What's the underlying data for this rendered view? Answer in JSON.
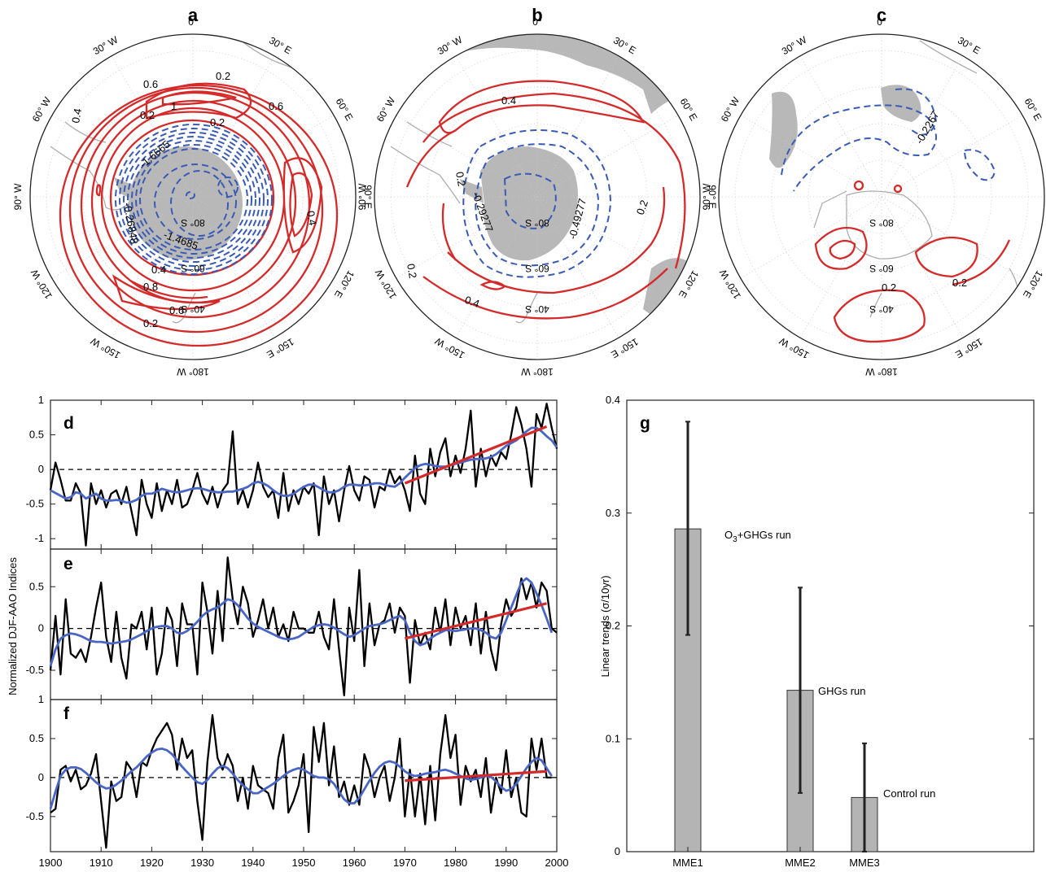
{
  "colors": {
    "positive": "#d42a2a",
    "negative": "#3a5bb5",
    "smooth": "#4a66c4",
    "series": "#000000",
    "trend": "#d42a2a",
    "land": "#b8b8b8",
    "bar": "#b4b4b4",
    "errorbar": "#222222"
  },
  "panel_labels": [
    "a",
    "b",
    "c",
    "d",
    "e",
    "f",
    "g"
  ],
  "maps": {
    "lon_labels": [
      "0°",
      "30° E",
      "60° E",
      "90° E",
      "120° E",
      "150° E",
      "180° W",
      "150° W",
      "120° W",
      "90° W",
      "60° W",
      "30° W"
    ],
    "lat_labels": [
      "40° S",
      "60° S",
      "80° S"
    ],
    "a": {
      "contour_labels": [
        "0.2",
        "0.6",
        "1",
        "0.2",
        "0.6",
        "0.4",
        "-1.6665",
        "-0.26848",
        "-1.4685",
        "0.4",
        "0.8",
        "0.6",
        "0.2",
        "0.4",
        "0.2"
      ]
    },
    "b": {
      "contour_labels": [
        "0.4",
        "0.2",
        "0.2",
        "-0.29277",
        "-0.49277",
        "0.2",
        "0.4"
      ]
    },
    "c": {
      "contour_labels": [
        "-0.2267",
        "0.2",
        "0.2"
      ]
    }
  },
  "chart_data": [
    {
      "type": "line",
      "panel": "d",
      "ylabel": "Normalized DJF-AAO Indices",
      "xlim": [
        1900,
        2000
      ],
      "ylim": [
        -1.15,
        1.0
      ],
      "yticks": [
        -1,
        -0.5,
        0,
        0.5,
        1
      ],
      "series": [
        {
          "values": [
            -0.3,
            0.1,
            -0.15,
            -0.45,
            -0.45,
            -0.2,
            -0.35,
            -1.1,
            -0.2,
            -0.5,
            -0.3,
            -0.55,
            -0.35,
            -0.3,
            -0.5,
            -0.25,
            -0.6,
            -0.95,
            -0.15,
            -0.5,
            -0.7,
            -0.2,
            -0.6,
            -0.3,
            -0.5,
            -0.15,
            -0.55,
            -0.5,
            -0.3,
            -0.05,
            -0.35,
            -0.5,
            -0.25,
            -0.55,
            -0.3,
            -0.2,
            0.55,
            -0.5,
            -0.3,
            -0.55,
            -0.3,
            0.1,
            -0.25,
            -0.4,
            -0.3,
            -0.7,
            -0.05,
            -0.6,
            -0.3,
            -0.5,
            -0.25,
            -0.35,
            -0.2,
            -0.95,
            -0.1,
            -0.5,
            -0.3,
            -0.75,
            -0.3,
            0.05,
            -0.3,
            -0.45,
            -0.1,
            -0.15,
            -0.55,
            -0.25,
            -0.3,
            0.0,
            -0.2,
            -0.1,
            -0.3,
            -0.6,
            0.2,
            -0.35,
            -0.5,
            0.3,
            -0.1,
            0.25,
            0.45,
            -0.1,
            0.2,
            -0.05,
            0.3,
            0.85,
            -0.25,
            0.3,
            -0.1,
            0.2,
            0.05,
            0.25,
            0.15,
            0.5,
            0.9,
            0.65,
            0.3,
            -0.25,
            0.8,
            0.6,
            0.95,
            0.6,
            0.3
          ]
        },
        {
          "values": [
            -0.3,
            -0.34,
            -0.38,
            -0.42,
            -0.4,
            -0.33,
            -0.35,
            -0.42,
            -0.38,
            -0.35,
            -0.42,
            -0.45,
            -0.45,
            -0.44,
            -0.45,
            -0.48,
            -0.47,
            -0.44,
            -0.38,
            -0.35,
            -0.35,
            -0.32,
            -0.28,
            -0.3,
            -0.32,
            -0.33,
            -0.32,
            -0.3,
            -0.28,
            -0.27,
            -0.28,
            -0.3,
            -0.32,
            -0.33,
            -0.33,
            -0.32,
            -0.32,
            -0.3,
            -0.28,
            -0.25,
            -0.2,
            -0.18,
            -0.2,
            -0.24,
            -0.3,
            -0.35,
            -0.38,
            -0.38,
            -0.35,
            -0.3,
            -0.25,
            -0.22,
            -0.22,
            -0.26,
            -0.3,
            -0.33,
            -0.33,
            -0.3,
            -0.25,
            -0.22,
            -0.22,
            -0.23,
            -0.23,
            -0.22,
            -0.2,
            -0.2,
            -0.22,
            -0.24,
            -0.25,
            -0.2,
            -0.12,
            -0.05,
            0.02,
            0.06,
            0.08,
            0.07,
            0.05,
            0.04,
            0.04,
            0.06,
            0.08,
            0.1,
            0.12,
            0.14,
            0.15,
            0.15,
            0.16,
            0.18,
            0.22,
            0.28,
            0.34,
            0.38,
            0.42,
            0.48,
            0.55,
            0.6,
            0.6,
            0.55,
            0.48,
            0.42,
            0.32
          ]
        },
        {
          "x": [
            1970,
            1998
          ],
          "values": [
            -0.2,
            0.62
          ]
        }
      ]
    },
    {
      "type": "line",
      "panel": "e",
      "xlim": [
        1900,
        2000
      ],
      "ylim": [
        -0.85,
        0.95
      ],
      "yticks": [
        -0.5,
        0,
        0.5
      ],
      "series": [
        {
          "values": [
            -0.5,
            0.15,
            -0.55,
            0.35,
            -0.3,
            -0.35,
            -0.25,
            -0.4,
            -0.1,
            0.25,
            0.55,
            -0.1,
            -0.4,
            0.2,
            -0.35,
            -0.6,
            0.05,
            0.0,
            0.2,
            -0.25,
            0.25,
            -0.55,
            -0.3,
            0.25,
            0.1,
            -0.45,
            0.3,
            0.05,
            0.05,
            -0.55,
            0.55,
            0.2,
            -0.3,
            0.45,
            -0.15,
            0.85,
            0.35,
            0.05,
            0.5,
            0.3,
            -0.1,
            0.1,
            0.35,
            0.0,
            0.25,
            -0.1,
            0.05,
            -0.15,
            0.2,
            0.0,
            0.0,
            -0.05,
            -0.05,
            0.2,
            -0.1,
            -0.25,
            0.35,
            -0.25,
            -0.8,
            0.25,
            -0.15,
            0.7,
            -0.45,
            0.3,
            -0.2,
            0.05,
            0.1,
            0.3,
            -0.05,
            0.25,
            0.15,
            -0.65,
            0.1,
            -0.2,
            -0.05,
            -0.25,
            0.25,
            -0.05,
            0.35,
            -0.2,
            0.25,
            0.0,
            0.15,
            -0.2,
            0.3,
            -0.3,
            0.2,
            -0.25,
            -0.5,
            0.05,
            0.35,
            0.15,
            0.25,
            0.6,
            0.35,
            0.55,
            0.25,
            0.55,
            0.45,
            0.0,
            -0.05
          ]
        },
        {
          "values": [
            -0.45,
            -0.25,
            -0.12,
            -0.08,
            -0.06,
            -0.07,
            -0.09,
            -0.12,
            -0.15,
            -0.16,
            -0.16,
            -0.17,
            -0.18,
            -0.17,
            -0.16,
            -0.15,
            -0.13,
            -0.1,
            -0.07,
            -0.03,
            0.0,
            0.02,
            0.03,
            0.03,
            0.0,
            -0.05,
            -0.06,
            -0.03,
            0.02,
            0.08,
            0.15,
            0.2,
            0.23,
            0.25,
            0.3,
            0.35,
            0.33,
            0.28,
            0.2,
            0.12,
            0.06,
            0.02,
            -0.01,
            -0.04,
            -0.07,
            -0.1,
            -0.12,
            -0.13,
            -0.12,
            -0.1,
            -0.06,
            -0.02,
            0.02,
            0.04,
            0.05,
            0.04,
            0.01,
            -0.03,
            -0.07,
            -0.1,
            -0.08,
            -0.04,
            0.0,
            0.03,
            0.04,
            0.05,
            0.07,
            0.1,
            0.13,
            0.15,
            0.1,
            -0.05,
            -0.15,
            -0.2,
            -0.18,
            -0.12,
            -0.08,
            -0.05,
            -0.02,
            -0.02,
            -0.03,
            -0.02,
            -0.01,
            0.0,
            0.0,
            -0.02,
            -0.05,
            -0.1,
            -0.12,
            -0.05,
            0.1,
            0.25,
            0.4,
            0.55,
            0.6,
            0.55,
            0.42,
            0.28,
            0.12,
            -0.05
          ]
        },
        {
          "x": [
            1970,
            1998
          ],
          "values": [
            -0.12,
            0.3
          ]
        }
      ]
    },
    {
      "type": "line",
      "panel": "f",
      "xlabel": "",
      "xlim": [
        1900,
        2000
      ],
      "xticks": [
        1900,
        1910,
        1920,
        1930,
        1940,
        1950,
        1960,
        1970,
        1980,
        1990,
        2000
      ],
      "ylim": [
        -0.95,
        1.0
      ],
      "yticks": [
        -0.5,
        0,
        0.5,
        1
      ],
      "series": [
        {
          "values": [
            -0.45,
            -0.4,
            0.1,
            0.15,
            -0.05,
            0.1,
            -0.15,
            -0.1,
            0.05,
            0.3,
            -0.3,
            -0.9,
            -0.05,
            -0.3,
            -0.25,
            0.2,
            0.1,
            -0.25,
            0.2,
            0.15,
            0.35,
            0.5,
            0.6,
            0.7,
            0.55,
            0.1,
            0.5,
            0.25,
            0.35,
            -0.3,
            -0.8,
            0.2,
            0.8,
            0.25,
            0.1,
            0.3,
            0.15,
            -0.3,
            0.0,
            -0.4,
            0.15,
            -0.1,
            -0.15,
            -0.2,
            -0.4,
            0.25,
            0.55,
            -0.45,
            -0.3,
            -0.1,
            0.3,
            -0.7,
            0.65,
            0.2,
            0.7,
            -0.1,
            0.4,
            -0.25,
            -0.05,
            -0.35,
            -0.1,
            -0.35,
            0.3,
            0.1,
            -0.25,
            0.0,
            0.15,
            -0.3,
            0.0,
            0.5,
            -0.5,
            0.1,
            -0.5,
            0.05,
            -0.6,
            0.15,
            -0.55,
            0.3,
            0.8,
            0.25,
            0.55,
            -0.35,
            0.15,
            -0.05,
            0.1,
            -0.25,
            0.25,
            -0.45,
            0.0,
            -0.2,
            0.35,
            -0.25,
            0.0,
            -0.45,
            -0.5,
            0.5,
            0.1,
            0.5,
            0.0,
            0.0
          ]
        },
        {
          "values": [
            -0.4,
            -0.18,
            0.02,
            0.1,
            0.13,
            0.13,
            0.11,
            0.06,
            0.0,
            -0.06,
            -0.11,
            -0.14,
            -0.13,
            -0.09,
            -0.04,
            0.02,
            0.08,
            0.13,
            0.2,
            0.27,
            0.32,
            0.36,
            0.37,
            0.35,
            0.3,
            0.22,
            0.14,
            0.07,
            0.0,
            -0.06,
            -0.08,
            -0.03,
            0.05,
            0.12,
            0.15,
            0.12,
            0.05,
            -0.03,
            -0.1,
            -0.15,
            -0.2,
            -0.2,
            -0.16,
            -0.12,
            -0.08,
            -0.03,
            0.02,
            0.07,
            0.1,
            0.12,
            0.1,
            0.06,
            0.02,
            0.0,
            0.0,
            -0.02,
            -0.08,
            -0.18,
            -0.28,
            -0.33,
            -0.33,
            -0.26,
            -0.15,
            -0.04,
            0.06,
            0.14,
            0.19,
            0.21,
            0.19,
            0.14,
            0.08,
            0.04,
            0.02,
            0.03,
            0.05,
            0.06,
            0.07,
            0.09,
            0.1,
            0.08,
            0.05,
            0.02,
            -0.01,
            -0.03,
            -0.02,
            0.0,
            0.02,
            0.01,
            -0.05,
            -0.12,
            -0.17,
            -0.15,
            -0.08,
            0.02,
            0.12,
            0.2,
            0.25,
            0.22,
            0.12,
            0.02
          ]
        },
        {
          "x": [
            1970,
            1998
          ],
          "values": [
            -0.04,
            0.08
          ]
        }
      ]
    },
    {
      "type": "bar",
      "panel": "g",
      "ylabel": "Linear trends (σ/10yr)",
      "ylim": [
        0,
        0.4
      ],
      "yticks": [
        0,
        0.1,
        0.2,
        0.3,
        0.4
      ],
      "categories": [
        "MME1",
        "MME2",
        "MME3"
      ],
      "values": [
        0.286,
        0.143,
        0.048
      ],
      "error_low": [
        0.192,
        0.052,
        0.0
      ],
      "error_high": [
        0.381,
        0.234,
        0.096
      ],
      "annotations": [
        "O3+GHGs run",
        "GHGs run",
        "Control run"
      ]
    }
  ]
}
